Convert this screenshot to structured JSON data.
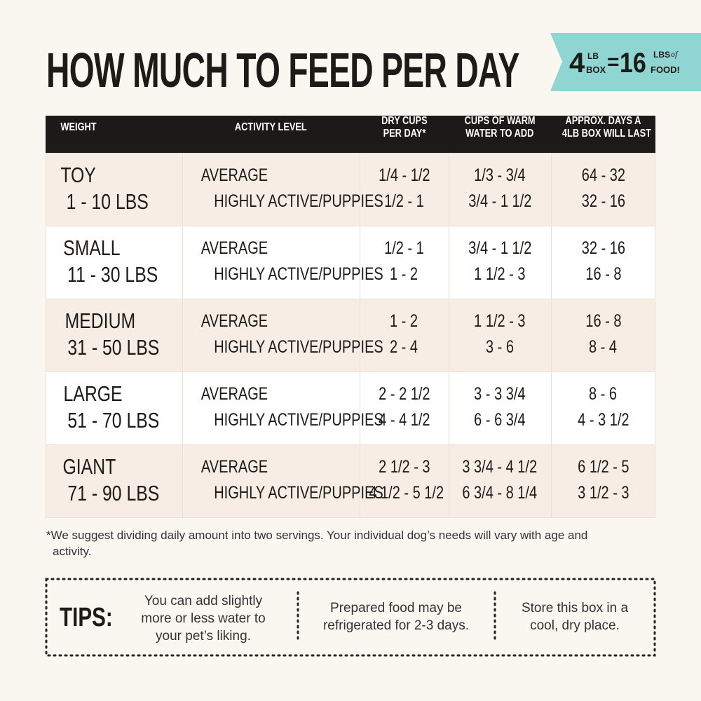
{
  "header": {
    "title": "HOW MUCH TO FEED PER DAY",
    "badge": {
      "amount": "4",
      "amount_unit": [
        "LB",
        "BOX"
      ],
      "equals": "=",
      "result": "16",
      "result_unit": [
        "LBS",
        "FOOD!"
      ],
      "result_of": "of"
    }
  },
  "table": {
    "columns": [
      [
        "WEIGHT"
      ],
      [
        "ACTIVITY LEVEL"
      ],
      [
        "DRY CUPS",
        "PER DAY*"
      ],
      [
        "CUPS OF WARM",
        "WATER TO ADD"
      ],
      [
        "APPROX. DAYS A",
        "4LB BOX WILL LAST"
      ]
    ],
    "rows": [
      {
        "size": "TOY",
        "range": "1 - 10 LBS",
        "levels": [
          "AVERAGE",
          "HIGHLY ACTIVE/PUPPIES"
        ],
        "dry": [
          "1/4 - 1/2",
          "1/2 - 1"
        ],
        "water": [
          "1/3 - 3/4",
          "3/4 - 1 1/2"
        ],
        "days": [
          "64 - 32",
          "32 - 16"
        ]
      },
      {
        "size": "SMALL",
        "range": "11 - 30 LBS",
        "levels": [
          "AVERAGE",
          "HIGHLY ACTIVE/PUPPIES"
        ],
        "dry": [
          "1/2 - 1",
          "1 - 2"
        ],
        "water": [
          "3/4 - 1 1/2",
          "1 1/2 - 3"
        ],
        "days": [
          "32 - 16",
          "16 - 8"
        ]
      },
      {
        "size": "MEDIUM",
        "range": "31 - 50 LBS",
        "levels": [
          "AVERAGE",
          "HIGHLY ACTIVE/PUPPIES"
        ],
        "dry": [
          "1 - 2",
          "2 - 4"
        ],
        "water": [
          "1 1/2 - 3",
          "3 - 6"
        ],
        "days": [
          "16 - 8",
          "8 - 4"
        ]
      },
      {
        "size": "LARGE",
        "range": "51 - 70 LBS",
        "levels": [
          "AVERAGE",
          "HIGHLY ACTIVE/PUPPIES"
        ],
        "dry": [
          "2 - 2 1/2",
          "4 - 4 1/2"
        ],
        "water": [
          "3 - 3 3/4",
          "6 - 6 3/4"
        ],
        "days": [
          "8 - 6",
          "4 - 3 1/2"
        ]
      },
      {
        "size": "GIANT",
        "range": "71 - 90 LBS",
        "levels": [
          "AVERAGE",
          "HIGHLY ACTIVE/PUPPIES"
        ],
        "dry": [
          "2 1/2 - 3",
          "4 1/2 - 5 1/2"
        ],
        "water": [
          "3 3/4 - 4 1/2",
          "6 3/4 - 8 1/4"
        ],
        "days": [
          "6 1/2 - 5",
          "3 1/2 - 3"
        ]
      }
    ]
  },
  "footnote": "*We suggest dividing daily amount into two servings. Your individual dog’s needs will vary with age and activity.",
  "tips": {
    "label": "TIPS:",
    "items": [
      "You can add slightly more or less water to your pet’s liking.",
      "Prepared food may be refrigerated for 2-3 days.",
      "Store this box in a cool, dry place."
    ]
  }
}
